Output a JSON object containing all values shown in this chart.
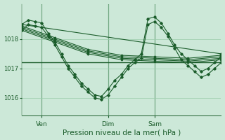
{
  "background_color": "#cce8d8",
  "grid_color": "#99ccaa",
  "line_color": "#1a5c2a",
  "xlabel": "Pression niveau de la mer( hPa )",
  "xlabel_fontsize": 7.5,
  "tick_labels_x": [
    "Ven",
    "Dim",
    "Sam"
  ],
  "yticks": [
    1016,
    1017,
    1018
  ],
  "ylim": [
    1015.4,
    1019.2
  ],
  "xlim": [
    0,
    30
  ],
  "vlines_x": [
    3,
    13,
    20
  ],
  "xtick_positions": [
    3,
    13,
    20
  ],
  "hline_y": 1017.2,
  "series_wiggly_1": {
    "x": [
      0,
      1,
      2,
      3,
      4,
      5,
      6,
      7,
      8,
      9,
      10,
      11,
      12,
      13,
      14,
      15,
      16,
      17,
      18,
      19,
      20,
      21,
      22,
      23,
      24,
      25,
      26,
      27,
      28,
      29,
      30
    ],
    "y": [
      1018.3,
      1018.5,
      1018.45,
      1018.4,
      1018.1,
      1017.8,
      1017.4,
      1017.0,
      1016.7,
      1016.4,
      1016.2,
      1016.0,
      1015.95,
      1016.1,
      1016.4,
      1016.7,
      1017.0,
      1017.2,
      1017.35,
      1018.5,
      1018.6,
      1018.4,
      1018.1,
      1017.7,
      1017.3,
      1017.1,
      1016.9,
      1016.7,
      1016.8,
      1017.0,
      1017.2
    ]
  },
  "series_wiggly_2": {
    "x": [
      0,
      1,
      2,
      3,
      4,
      5,
      6,
      7,
      8,
      9,
      10,
      11,
      12,
      13,
      14,
      15,
      16,
      17,
      18,
      19,
      20,
      21,
      22,
      23,
      24,
      25,
      26,
      27,
      28,
      29,
      30
    ],
    "y": [
      1018.5,
      1018.65,
      1018.6,
      1018.55,
      1018.2,
      1017.9,
      1017.5,
      1017.1,
      1016.8,
      1016.5,
      1016.3,
      1016.1,
      1016.05,
      1016.3,
      1016.6,
      1016.8,
      1017.1,
      1017.3,
      1017.5,
      1018.7,
      1018.75,
      1018.55,
      1018.2,
      1017.8,
      1017.5,
      1017.3,
      1017.1,
      1016.9,
      1017.0,
      1017.2,
      1017.4
    ]
  },
  "series_smooth": [
    {
      "x": [
        0,
        5,
        10,
        15,
        20,
        25,
        30
      ],
      "y": [
        1018.3,
        1017.9,
        1017.5,
        1017.3,
        1017.25,
        1017.2,
        1017.3
      ]
    },
    {
      "x": [
        0,
        5,
        10,
        15,
        20,
        25,
        30
      ],
      "y": [
        1018.35,
        1017.95,
        1017.55,
        1017.35,
        1017.3,
        1017.25,
        1017.35
      ]
    },
    {
      "x": [
        0,
        5,
        10,
        15,
        20,
        25,
        30
      ],
      "y": [
        1018.4,
        1018.0,
        1017.6,
        1017.4,
        1017.35,
        1017.3,
        1017.4
      ]
    },
    {
      "x": [
        0,
        5,
        10,
        15,
        20,
        25,
        30
      ],
      "y": [
        1018.45,
        1018.05,
        1017.65,
        1017.45,
        1017.4,
        1017.35,
        1017.45
      ]
    },
    {
      "x": [
        0,
        30
      ],
      "y": [
        1018.5,
        1017.5
      ]
    }
  ]
}
